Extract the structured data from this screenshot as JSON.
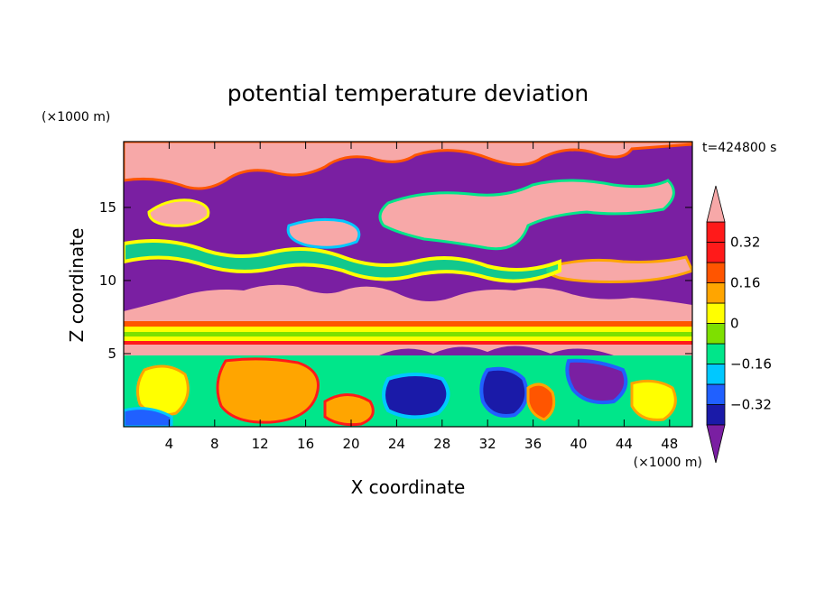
{
  "chart_data": {
    "type": "heatmap",
    "title": "potential temperature deviation",
    "xlabel": "X coordinate",
    "ylabel": "Z coordinate",
    "x_unit": "(×1000 m)",
    "y_unit": "(×1000 m)",
    "time_label": "t=424800 s",
    "xlim": [
      0,
      50
    ],
    "ylim": [
      0,
      19.5
    ],
    "x_ticks": [
      4,
      8,
      12,
      16,
      20,
      24,
      28,
      32,
      36,
      40,
      44,
      48
    ],
    "x_tick_labels": [
      "4",
      "8",
      "12",
      "16",
      "20",
      "24",
      "28",
      "32",
      "36",
      "40",
      "44",
      "48"
    ],
    "y_ticks": [
      5,
      10,
      15
    ],
    "y_tick_labels": [
      "5",
      "10",
      "15"
    ],
    "colorbar": {
      "levels": [
        -0.4,
        -0.32,
        -0.24,
        -0.16,
        -0.08,
        0,
        0.08,
        0.16,
        0.24,
        0.32,
        0.4
      ],
      "labels": [
        "0.32",
        "0.16",
        "0",
        "−0.16",
        "−0.32"
      ],
      "label_values": [
        0.32,
        0.16,
        0,
        -0.16,
        -0.32
      ],
      "colors": [
        "#7a1fa2",
        "#1a1aa8",
        "#2060ff",
        "#00c8ff",
        "#00e68a",
        "#7ee000",
        "#ffff00",
        "#ffa500",
        "#ff5500",
        "#ff1a1a",
        "#f7a8a8"
      ],
      "extend": "both"
    }
  }
}
